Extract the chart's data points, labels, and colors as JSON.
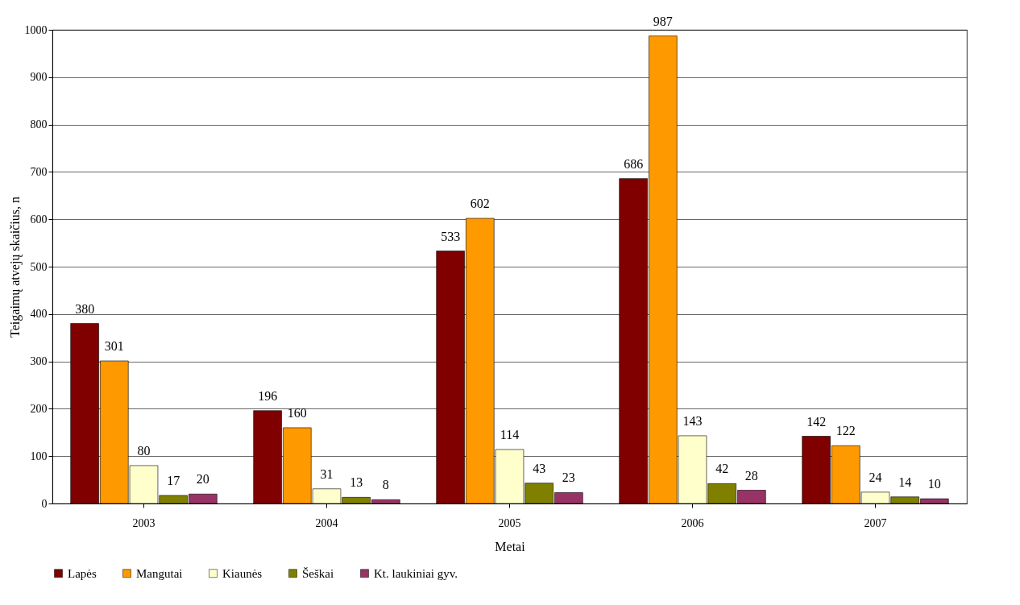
{
  "chart_data": {
    "type": "bar",
    "xlabel": "Metai",
    "ylabel": "Teigaimų atvejų skaičius, n",
    "categories": [
      "2003",
      "2004",
      "2005",
      "2006",
      "2007"
    ],
    "series": [
      {
        "name": "Lapės",
        "color": "#800000",
        "values": [
          380,
          196,
          533,
          686,
          142
        ]
      },
      {
        "name": "Mangutai",
        "color": "#ff9900",
        "values": [
          301,
          160,
          602,
          987,
          122
        ]
      },
      {
        "name": "Kiaunės",
        "color": "#ffffcc",
        "values": [
          80,
          31,
          114,
          143,
          24
        ]
      },
      {
        "name": "Šeškai",
        "color": "#808000",
        "values": [
          17,
          13,
          43,
          42,
          14
        ]
      },
      {
        "name": "Kt. laukiniai gyv.",
        "color": "#993366",
        "values": [
          20,
          8,
          23,
          28,
          10
        ]
      }
    ],
    "ylim": [
      0,
      1000
    ],
    "yticks": [
      0,
      100,
      200,
      300,
      400,
      500,
      600,
      700,
      800,
      900,
      1000
    ],
    "grid": "y",
    "legend": "bottom",
    "data_labels": true
  }
}
